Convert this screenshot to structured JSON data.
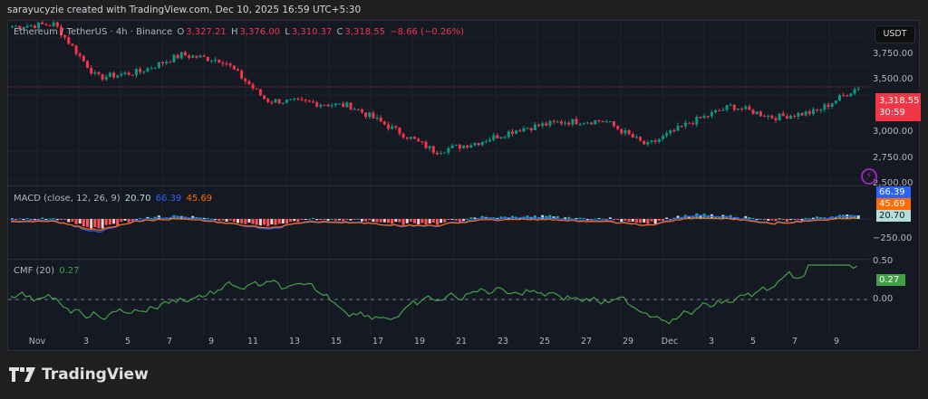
{
  "caption": "sarayucyzie created with TradingView.com, Dec 10, 2025 16:59 UTC+5:30",
  "header": {
    "symbol": "Ethereum / TetherUS · 4h · Binance",
    "o_label": "O",
    "o": "3,327.21",
    "h_label": "H",
    "h": "3,376.00",
    "l_label": "L",
    "l": "3,310.37",
    "c_label": "C",
    "c": "3,318.55",
    "change": "−8.66 (−0.26%)"
  },
  "currency_button": "USDT",
  "price_axis": [
    "3,750.00",
    "3,500.00",
    "3,000.00",
    "2,750.00",
    "2,500.00"
  ],
  "last_price": {
    "price": "3,318.55",
    "countdown": "30:59"
  },
  "macd": {
    "label": "MACD (close, 12, 26, 9)",
    "hist": "20.70",
    "macd": "66.39",
    "signal": "45.69",
    "axis": [
      "−250.00"
    ],
    "colors": {
      "macd": "#2962ff",
      "signal": "#ff6d00",
      "hist": "#b2dfdb"
    }
  },
  "cmf": {
    "label": "CMF (20)",
    "value": "0.27",
    "axis": [
      "0.50",
      "0.00"
    ],
    "color": "#43a047"
  },
  "x_axis": [
    "Nov",
    "3",
    "5",
    "7",
    "9",
    "11",
    "13",
    "15",
    "17",
    "19",
    "21",
    "23",
    "25",
    "27",
    "29",
    "Dec",
    "3",
    "5",
    "7",
    "9"
  ],
  "logo": "TradingView",
  "chart_data": [
    {
      "type": "candlestick",
      "title": "Ethereum / TetherUS · 4h · Binance",
      "ylabel": "USDT",
      "ylim": [
        2450,
        3900
      ],
      "x": [
        "Nov 1",
        "Nov 3",
        "Nov 5",
        "Nov 7",
        "Nov 9",
        "Nov 11",
        "Nov 13",
        "Nov 15",
        "Nov 17",
        "Nov 19",
        "Nov 21",
        "Nov 23",
        "Nov 25",
        "Nov 27",
        "Nov 29",
        "Dec 1",
        "Dec 3",
        "Dec 5",
        "Dec 7",
        "Dec 9",
        "Dec 10"
      ],
      "close_approx": [
        3850,
        3870,
        3400,
        3450,
        3600,
        3550,
        3200,
        3180,
        3150,
        2950,
        2750,
        2830,
        2950,
        3010,
        3020,
        2800,
        3000,
        3150,
        3050,
        3100,
        3318.55
      ],
      "last": {
        "open": 3327.21,
        "high": 3376.0,
        "low": 3310.37,
        "close": 3318.55,
        "change": -8.66,
        "change_pct": -0.26
      }
    },
    {
      "type": "line",
      "title": "MACD (close, 12, 26, 9)",
      "series": [
        {
          "name": "MACD",
          "last": 66.39
        },
        {
          "name": "Signal",
          "last": 45.69
        },
        {
          "name": "Histogram",
          "last": 20.7
        }
      ]
    },
    {
      "type": "line",
      "title": "CMF (20)",
      "ylim": [
        -0.3,
        0.5
      ],
      "series": [
        {
          "name": "CMF",
          "last": 0.27
        }
      ]
    }
  ]
}
